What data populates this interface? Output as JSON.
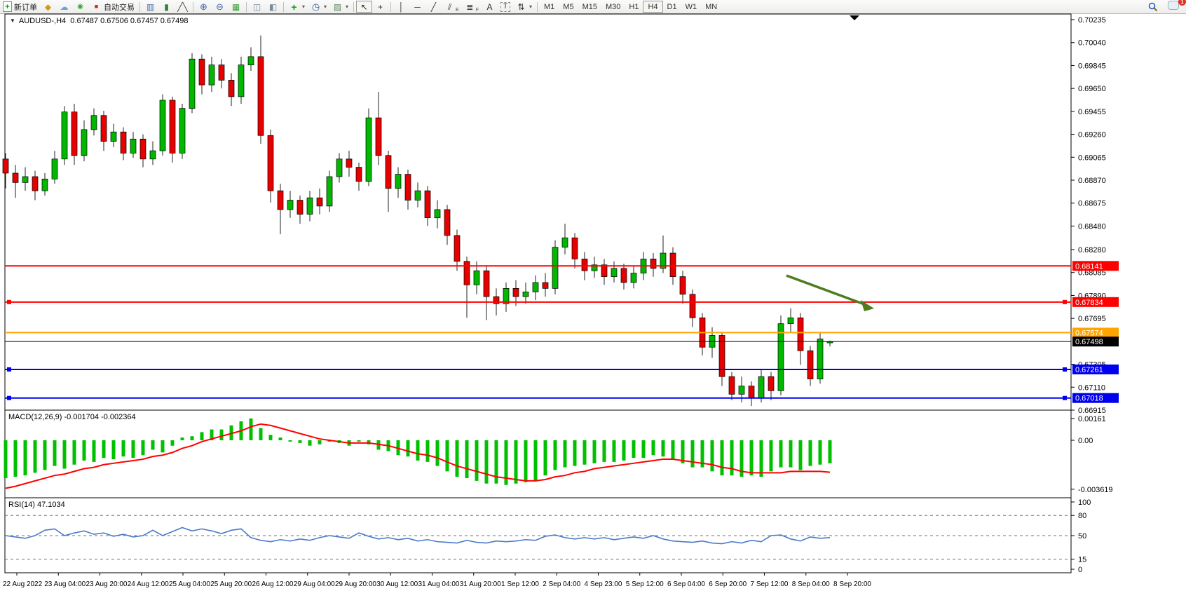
{
  "toolbar": {
    "new_order_label": "新订单",
    "autotrade_label": "自动交易",
    "plus_glyph": "+",
    "channel_letter": "E",
    "fibo_letter": "F",
    "text_letter": "A",
    "label_letter": "T",
    "timeframes": [
      "M1",
      "M5",
      "M15",
      "M30",
      "H1",
      "H4",
      "D1",
      "W1",
      "MN"
    ],
    "active_timeframe": "H4",
    "notification_count": "1"
  },
  "chart": {
    "symbol_tf": "AUDUSD-,H4",
    "ohlc": "0.67487 0.67506 0.67457 0.67498",
    "dropdown_glyph": "▼",
    "price_axis_ticks": [
      "0.70235",
      "0.70040",
      "0.69845",
      "0.69650",
      "0.69455",
      "0.69260",
      "0.69065",
      "0.68870",
      "0.68675",
      "0.68480",
      "0.68280",
      "0.68085",
      "0.67890",
      "0.67695",
      "0.67305",
      "0.67110",
      "0.66915"
    ],
    "colors": {
      "up": "#00b800",
      "down": "#e60000",
      "wick": "#222222",
      "arrow": "#4e7d1f"
    },
    "hlines": [
      {
        "label": "0.68141",
        "value": 0.68141,
        "color": "#ff0000",
        "width": 2,
        "handles": false
      },
      {
        "label": "0.67834",
        "value": 0.67834,
        "color": "#ff0000",
        "width": 2,
        "handles": true
      },
      {
        "label": "0.67574",
        "value": 0.67574,
        "color": "#ffa500",
        "width": 2,
        "handles": false
      },
      {
        "label": "0.67498",
        "value": 0.67498,
        "color": "#000000",
        "width": 1,
        "handles": false
      },
      {
        "label": "0.67261",
        "value": 0.67261,
        "color": "#0000ee",
        "width": 2,
        "handles": true
      },
      {
        "label": "0.67018",
        "value": 0.67018,
        "color": "#0000ee",
        "width": 2,
        "handles": true
      }
    ],
    "candles": [
      [
        0.6905,
        0.691,
        0.688,
        0.6893
      ],
      [
        0.6893,
        0.69,
        0.6872,
        0.6885
      ],
      [
        0.6885,
        0.6898,
        0.6878,
        0.689
      ],
      [
        0.689,
        0.6895,
        0.687,
        0.6878
      ],
      [
        0.6878,
        0.6893,
        0.6874,
        0.6888
      ],
      [
        0.6888,
        0.6912,
        0.6884,
        0.6905
      ],
      [
        0.6905,
        0.695,
        0.69,
        0.6945
      ],
      [
        0.6945,
        0.6952,
        0.69,
        0.6908
      ],
      [
        0.6908,
        0.6938,
        0.6903,
        0.693
      ],
      [
        0.693,
        0.6948,
        0.6925,
        0.6942
      ],
      [
        0.6942,
        0.6946,
        0.6912,
        0.692
      ],
      [
        0.692,
        0.6935,
        0.6915,
        0.6928
      ],
      [
        0.6928,
        0.6932,
        0.6904,
        0.691
      ],
      [
        0.691,
        0.6928,
        0.6906,
        0.6922
      ],
      [
        0.6922,
        0.6926,
        0.6898,
        0.6905
      ],
      [
        0.6905,
        0.692,
        0.69,
        0.6912
      ],
      [
        0.6912,
        0.696,
        0.6908,
        0.6955
      ],
      [
        0.6955,
        0.6958,
        0.6902,
        0.691
      ],
      [
        0.691,
        0.6952,
        0.6905,
        0.6948
      ],
      [
        0.6948,
        0.6995,
        0.6944,
        0.699
      ],
      [
        0.699,
        0.6994,
        0.696,
        0.6968
      ],
      [
        0.6968,
        0.6992,
        0.6962,
        0.6985
      ],
      [
        0.6985,
        0.699,
        0.6965,
        0.6972
      ],
      [
        0.6972,
        0.6978,
        0.695,
        0.6958
      ],
      [
        0.6958,
        0.6992,
        0.6952,
        0.6985
      ],
      [
        0.6985,
        0.7,
        0.698,
        0.6992
      ],
      [
        0.6992,
        0.701,
        0.6918,
        0.6925
      ],
      [
        0.6925,
        0.693,
        0.6868,
        0.6878
      ],
      [
        0.6878,
        0.6884,
        0.6841,
        0.6862
      ],
      [
        0.6862,
        0.6878,
        0.6855,
        0.687
      ],
      [
        0.687,
        0.6874,
        0.685,
        0.6858
      ],
      [
        0.6858,
        0.6878,
        0.6852,
        0.6872
      ],
      [
        0.6872,
        0.688,
        0.6858,
        0.6865
      ],
      [
        0.6865,
        0.6895,
        0.686,
        0.689
      ],
      [
        0.689,
        0.691,
        0.6885,
        0.6905
      ],
      [
        0.6905,
        0.6912,
        0.689,
        0.6898
      ],
      [
        0.6898,
        0.6902,
        0.6878,
        0.6886
      ],
      [
        0.6886,
        0.6948,
        0.6882,
        0.694
      ],
      [
        0.694,
        0.6962,
        0.69,
        0.6908
      ],
      [
        0.6908,
        0.6912,
        0.686,
        0.688
      ],
      [
        0.688,
        0.6898,
        0.6872,
        0.6892
      ],
      [
        0.6892,
        0.6896,
        0.6862,
        0.687
      ],
      [
        0.687,
        0.6885,
        0.6864,
        0.6878
      ],
      [
        0.6878,
        0.6882,
        0.6848,
        0.6855
      ],
      [
        0.6855,
        0.687,
        0.6846,
        0.6862
      ],
      [
        0.6862,
        0.6866,
        0.6832,
        0.684
      ],
      [
        0.684,
        0.6845,
        0.681,
        0.6818
      ],
      [
        0.6818,
        0.6822,
        0.677,
        0.6798
      ],
      [
        0.6798,
        0.6818,
        0.679,
        0.681
      ],
      [
        0.681,
        0.6814,
        0.6768,
        0.6788
      ],
      [
        0.6788,
        0.6795,
        0.6772,
        0.6782
      ],
      [
        0.6782,
        0.68,
        0.6775,
        0.6795
      ],
      [
        0.6795,
        0.6802,
        0.678,
        0.6788
      ],
      [
        0.6788,
        0.68,
        0.6782,
        0.6792
      ],
      [
        0.6792,
        0.6806,
        0.6785,
        0.68
      ],
      [
        0.68,
        0.6808,
        0.6788,
        0.6795
      ],
      [
        0.6795,
        0.6836,
        0.679,
        0.683
      ],
      [
        0.683,
        0.685,
        0.6824,
        0.6838
      ],
      [
        0.6838,
        0.6842,
        0.6812,
        0.682
      ],
      [
        0.682,
        0.6826,
        0.6802,
        0.681
      ],
      [
        0.681,
        0.6822,
        0.6804,
        0.6815
      ],
      [
        0.6815,
        0.682,
        0.6798,
        0.6805
      ],
      [
        0.6805,
        0.6818,
        0.68,
        0.6812
      ],
      [
        0.6812,
        0.6816,
        0.6794,
        0.68
      ],
      [
        0.68,
        0.6814,
        0.6795,
        0.6808
      ],
      [
        0.6808,
        0.6826,
        0.6802,
        0.682
      ],
      [
        0.682,
        0.6825,
        0.6805,
        0.6812
      ],
      [
        0.6812,
        0.684,
        0.6808,
        0.6825
      ],
      [
        0.6825,
        0.683,
        0.6798,
        0.6805
      ],
      [
        0.6805,
        0.681,
        0.6782,
        0.679
      ],
      [
        0.679,
        0.6794,
        0.6762,
        0.677
      ],
      [
        0.677,
        0.6774,
        0.6738,
        0.6745
      ],
      [
        0.6745,
        0.6762,
        0.6736,
        0.6755
      ],
      [
        0.6755,
        0.6758,
        0.6712,
        0.672
      ],
      [
        0.672,
        0.6724,
        0.67,
        0.6705
      ],
      [
        0.6705,
        0.672,
        0.6698,
        0.6712
      ],
      [
        0.6712,
        0.6716,
        0.6695,
        0.6702
      ],
      [
        0.6702,
        0.6726,
        0.6698,
        0.672
      ],
      [
        0.672,
        0.6724,
        0.67,
        0.6708
      ],
      [
        0.6708,
        0.6772,
        0.6704,
        0.6765
      ],
      [
        0.6765,
        0.6778,
        0.6758,
        0.677
      ],
      [
        0.677,
        0.6774,
        0.673,
        0.6742
      ],
      [
        0.6742,
        0.6746,
        0.6712,
        0.6718
      ],
      [
        0.6718,
        0.6758,
        0.6714,
        0.6752
      ],
      [
        0.67487,
        0.67506,
        0.67457,
        0.67498
      ]
    ]
  },
  "macd": {
    "label": "MACD(12,26,9)",
    "values": "-0.001704 -0.002364",
    "axis": [
      "0.00161",
      "0.00",
      "-0.003619"
    ],
    "hist_color": "#00c000",
    "signal_color": "#ff0000",
    "histogram": [
      -0.0028,
      -0.0027,
      -0.0026,
      -0.0024,
      -0.0022,
      -0.0019,
      -0.0021,
      -0.0018,
      -0.0015,
      -0.0016,
      -0.0013,
      -0.0014,
      -0.0012,
      -0.0013,
      -0.0011,
      -0.0007,
      -0.0009,
      -0.0004,
      0.0002,
      0.0003,
      0.0006,
      0.0008,
      0.0008,
      0.0011,
      0.0014,
      0.00161,
      0.0009,
      0.0004,
      0.0002,
      -0.0001,
      -0.0002,
      -0.0004,
      -0.0003,
      -0.0001,
      -0.0002,
      -0.0004,
      -0.0001,
      -0.0003,
      -0.0007,
      -0.0008,
      -0.0011,
      -0.0012,
      -0.0015,
      -0.0016,
      -0.0019,
      -0.0023,
      -0.0027,
      -0.0028,
      -0.003,
      -0.0032,
      -0.0032,
      -0.0033,
      -0.0032,
      -0.0031,
      -0.003,
      -0.0026,
      -0.0022,
      -0.002,
      -0.0019,
      -0.0018,
      -0.0017,
      -0.0016,
      -0.0016,
      -0.0015,
      -0.0013,
      -0.0013,
      -0.0011,
      -0.0012,
      -0.0014,
      -0.0017,
      -0.002,
      -0.002,
      -0.0023,
      -0.0026,
      -0.0026,
      -0.0027,
      -0.0026,
      -0.0027,
      -0.0023,
      -0.002,
      -0.002,
      -0.0022,
      -0.0019,
      -0.0018,
      -0.001704
    ],
    "signal": [
      -0.00355,
      -0.0034,
      -0.0032,
      -0.003,
      -0.0028,
      -0.0026,
      -0.0025,
      -0.0023,
      -0.0021,
      -0.002,
      -0.0018,
      -0.0017,
      -0.0016,
      -0.0015,
      -0.0014,
      -0.0012,
      -0.0011,
      -0.0009,
      -0.0006,
      -0.0004,
      -0.0001,
      0.0001,
      0.0003,
      0.0005,
      0.0007,
      0.001,
      0.0012,
      0.0011,
      0.0009,
      0.0007,
      0.0005,
      0.0003,
      0.0001,
      0.0,
      -0.0001,
      -0.0002,
      -0.0002,
      -0.0002,
      -0.0003,
      -0.0004,
      -0.0006,
      -0.0008,
      -0.001,
      -0.0011,
      -0.0013,
      -0.0016,
      -0.0019,
      -0.0021,
      -0.0023,
      -0.0025,
      -0.0027,
      -0.0028,
      -0.0029,
      -0.003,
      -0.003,
      -0.0029,
      -0.0027,
      -0.0026,
      -0.0024,
      -0.0023,
      -0.0021,
      -0.002,
      -0.0019,
      -0.0018,
      -0.0017,
      -0.0016,
      -0.0015,
      -0.0014,
      -0.0014,
      -0.0015,
      -0.0016,
      -0.0017,
      -0.0018,
      -0.002,
      -0.0021,
      -0.0023,
      -0.0024,
      -0.0024,
      -0.0024,
      -0.0024,
      -0.0023,
      -0.0023,
      -0.0023,
      -0.0023,
      -0.002364
    ]
  },
  "rsi": {
    "label": "RSI(14)",
    "value": "47.1034",
    "axis": [
      "100",
      "80",
      "50",
      "15",
      "0"
    ],
    "levels": [
      80,
      50,
      15
    ],
    "line_color": "#4a7ac8",
    "values": [
      50,
      48,
      46,
      50,
      58,
      60,
      50,
      54,
      57,
      52,
      54,
      49,
      52,
      48,
      50,
      58,
      50,
      56,
      62,
      57,
      60,
      57,
      53,
      58,
      60,
      47,
      43,
      41,
      44,
      42,
      45,
      43,
      47,
      50,
      48,
      46,
      54,
      49,
      45,
      47,
      44,
      46,
      42,
      44,
      41,
      40,
      39,
      43,
      40,
      39,
      42,
      41,
      42,
      44,
      43,
      49,
      51,
      47,
      45,
      47,
      45,
      47,
      44,
      46,
      48,
      46,
      50,
      45,
      42,
      41,
      40,
      42,
      39,
      38,
      41,
      39,
      43,
      41,
      50,
      51,
      45,
      42,
      48,
      46,
      47.1
    ]
  },
  "dates": [
    "22 Aug 2022",
    "23 Aug 04:00",
    "23 Aug 20:00",
    "24 Aug 12:00",
    "25 Aug 04:00",
    "25 Aug 20:00",
    "26 Aug 12:00",
    "29 Aug 04:00",
    "29 Aug 20:00",
    "30 Aug 12:00",
    "31 Aug 04:00",
    "31 Aug 20:00",
    "1 Sep 12:00",
    "2 Sep 04:00",
    "4 Sep 23:00",
    "5 Sep 12:00",
    "6 Sep 04:00",
    "6 Sep 20:00",
    "7 Sep 12:00",
    "8 Sep 04:00",
    "8 Sep 20:00"
  ]
}
